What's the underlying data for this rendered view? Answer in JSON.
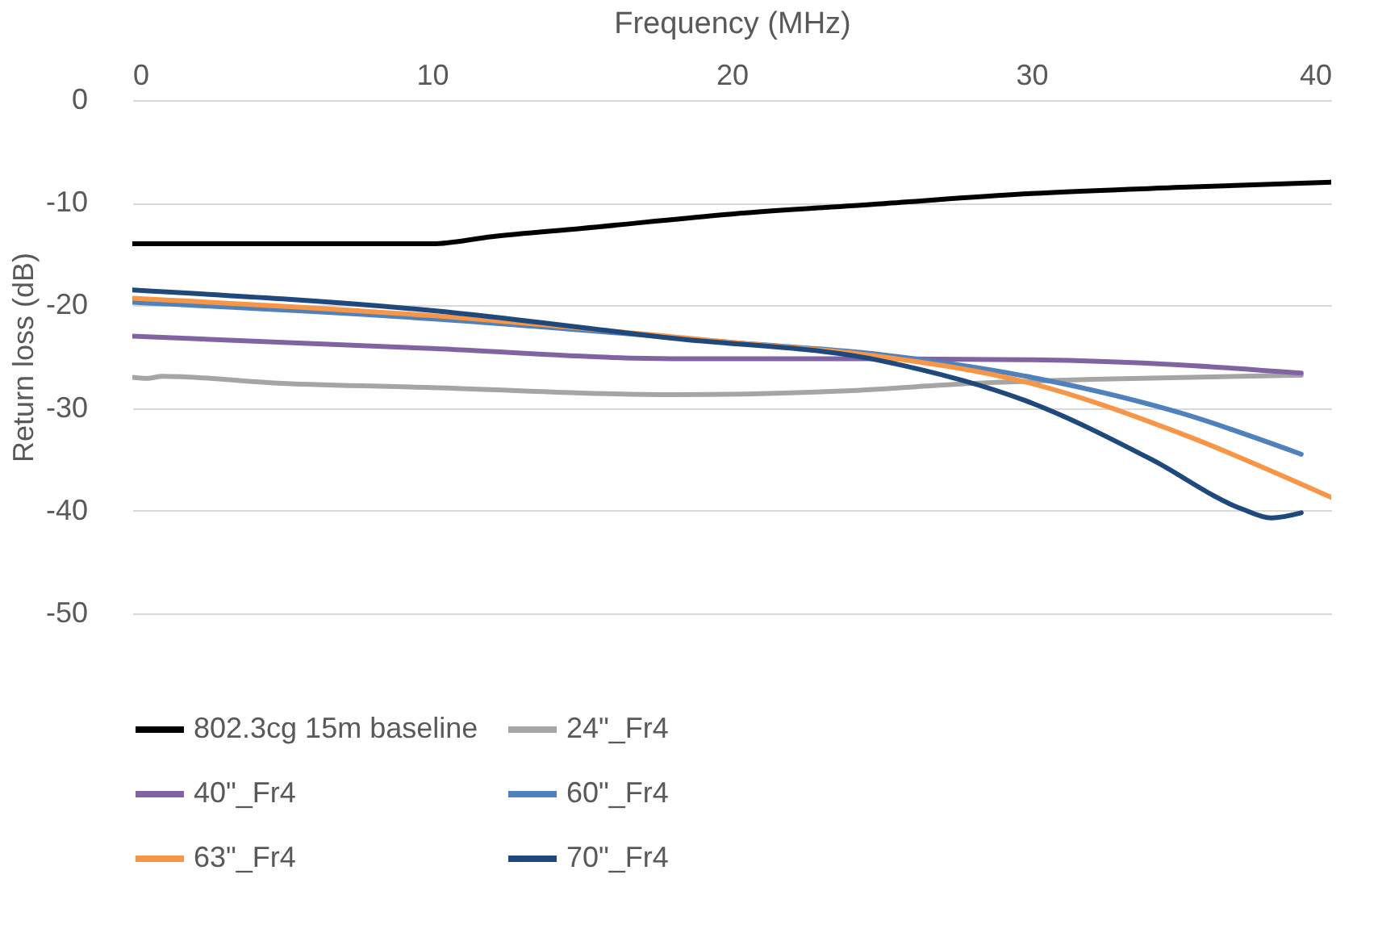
{
  "chart_data": {
    "type": "line",
    "xlabel": "Frequency (MHz)",
    "ylabel": "Return loss (dB)",
    "xlim": [
      0,
      40
    ],
    "xticks": [
      0,
      10,
      20,
      30,
      40
    ],
    "ylim": [
      -50,
      0
    ],
    "yticks": [
      0,
      -10,
      -20,
      -30,
      -40,
      -50
    ],
    "grid": "y",
    "legend": "bottom",
    "marker": "none",
    "line_style": "solid",
    "series": [
      {
        "name": "802.3cg 15m baseline",
        "color": "#000000",
        "x": [
          0,
          5,
          10,
          12,
          15,
          20,
          25,
          30,
          35,
          40
        ],
        "values": [
          -14,
          -14,
          -14,
          -13.3,
          -12.5,
          -11.1,
          -10.1,
          -9.1,
          -8.5,
          -8.0
        ]
      },
      {
        "name": "24\"_Fr4",
        "color": "#a5a5a5",
        "x": [
          0,
          0.5,
          1,
          5,
          10,
          18,
          24,
          28,
          32,
          39
        ],
        "values": [
          -27,
          -27.1,
          -26.9,
          -27.6,
          -28.0,
          -28.7,
          -28.3,
          -27.6,
          -27.2,
          -26.8
        ]
      },
      {
        "name": "40\"_Fr4",
        "color": "#8064a2",
        "x": [
          0,
          10,
          18,
          25,
          30,
          35,
          39
        ],
        "values": [
          -23,
          -24.2,
          -25.2,
          -25.2,
          -25.3,
          -25.8,
          -26.6
        ]
      },
      {
        "name": "60\"_Fr4",
        "color": "#4f81bd",
        "x": [
          0,
          10,
          20,
          25,
          30,
          35,
          39
        ],
        "values": [
          -19.7,
          -21.3,
          -23.6,
          -24.8,
          -27,
          -30.5,
          -34.5
        ]
      },
      {
        "name": "63\"_Fr4",
        "color": "#f79646",
        "x": [
          0,
          10,
          20,
          25,
          30,
          35,
          40
        ],
        "values": [
          -19.3,
          -21,
          -23.6,
          -25,
          -27.6,
          -32.5,
          -38.7
        ]
      },
      {
        "name": "70\"_Fr4",
        "color": "#1f497d",
        "x": [
          0,
          10,
          18,
          25,
          30,
          34,
          37,
          38,
          39
        ],
        "values": [
          -18.5,
          -20.5,
          -23.2,
          -25.4,
          -29.5,
          -35,
          -39.8,
          -40.7,
          -40.2
        ]
      }
    ]
  }
}
